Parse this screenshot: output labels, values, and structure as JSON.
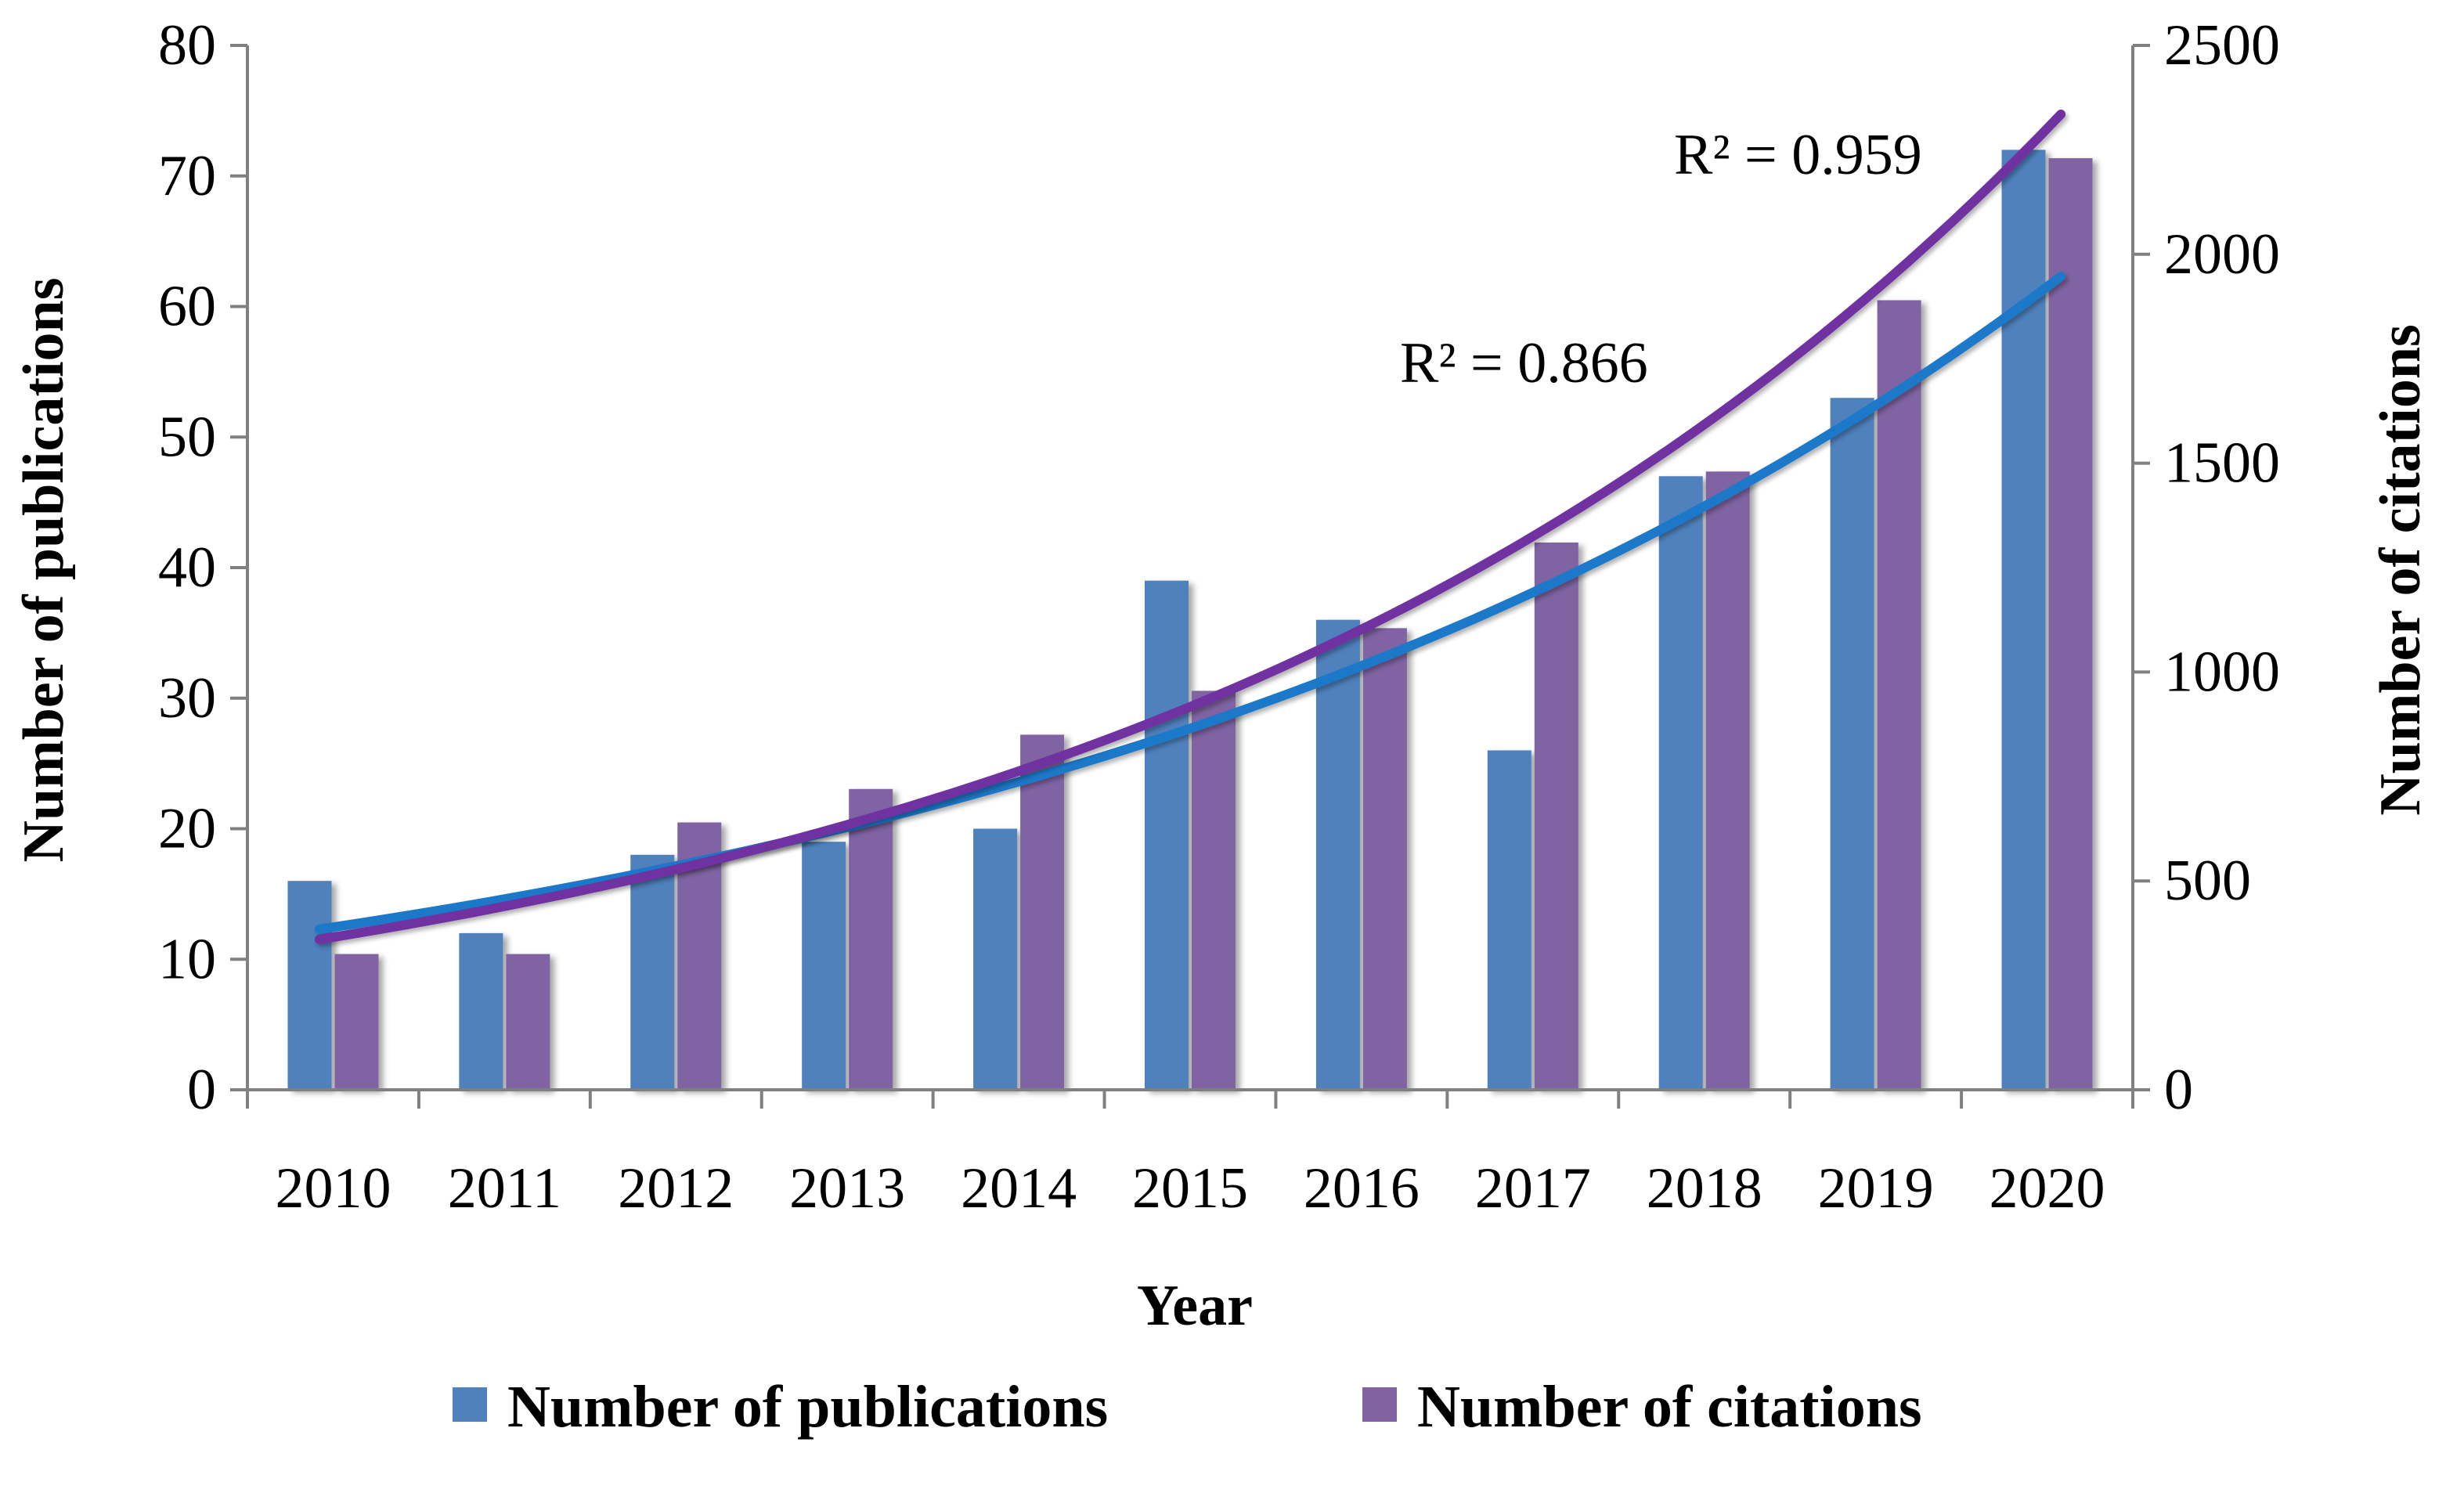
{
  "chart_data": {
    "type": "bar",
    "categories": [
      "2010",
      "2011",
      "2012",
      "2013",
      "2014",
      "2015",
      "2016",
      "2017",
      "2018",
      "2019",
      "2020"
    ],
    "series": [
      {
        "name": "Number of publications",
        "axis": "left",
        "color": "#4f81bd",
        "values": [
          16,
          12,
          18,
          19,
          20,
          39,
          36,
          26,
          47,
          53,
          72
        ]
      },
      {
        "name": "Number of citations",
        "axis": "right",
        "color": "#8064a2",
        "values": [
          325,
          325,
          640,
          720,
          850,
          955,
          1105,
          1310,
          1480,
          1890,
          2230
        ]
      }
    ],
    "trendlines": [
      {
        "series": "Number of publications",
        "kind": "exponential",
        "color": "#1f78c8",
        "r2_label": "R² = 0.866",
        "start_value": 12.3,
        "end_value": 62.3
      },
      {
        "series": "Number of citations",
        "kind": "exponential",
        "color": "#7030a0",
        "r2_label": "R² = 0.959",
        "start_value": 360,
        "end_value": 2335
      }
    ],
    "xlabel": "Year",
    "ylabel_left": "Number of publications",
    "ylabel_right": "Number of citations",
    "ylim_left": [
      0,
      80
    ],
    "ylim_right": [
      0,
      2500
    ],
    "yticks_left": [
      "0",
      "10",
      "20",
      "30",
      "40",
      "50",
      "60",
      "70",
      "80"
    ],
    "yticks_right": [
      "0",
      "500",
      "1000",
      "1500",
      "2000",
      "2500"
    ],
    "legend_position": "bottom",
    "legend": [
      "Number of publications",
      "Number of citations"
    ]
  }
}
